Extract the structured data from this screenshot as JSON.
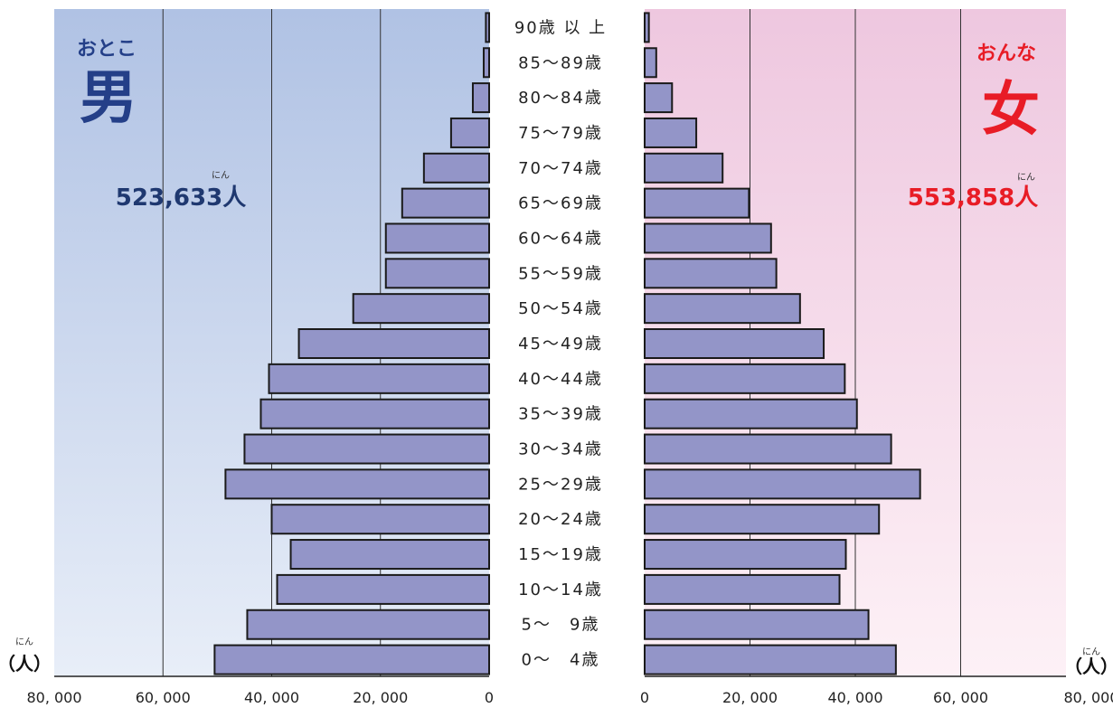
{
  "chart_data": {
    "type": "bar",
    "orientation": "horizontal-butterfly",
    "categories": [
      "90歳 以 上",
      "85～89歳",
      "80～84歳",
      "75～79歳",
      "70～74歳",
      "65～69歳",
      "60～64歳",
      "55～59歳",
      "50～54歳",
      "45～49歳",
      "40～44歳",
      "35～39歳",
      "30～34歳",
      "25～29歳",
      "20～24歳",
      "15～19歳",
      "10～14歳",
      "5～　9歳",
      "0～　4歳"
    ],
    "series": [
      {
        "name": "男",
        "side": "left",
        "reading": "おとこ",
        "total": "523,633人",
        "total_reading": "にん",
        "values": [
          600,
          1000,
          3000,
          7000,
          12000,
          16000,
          19000,
          19000,
          25000,
          35000,
          40500,
          42000,
          45000,
          48500,
          40000,
          36500,
          39000,
          44500,
          50500
        ]
      },
      {
        "name": "女",
        "side": "right",
        "reading": "おんな",
        "total": "553,858人",
        "total_reading": "にん",
        "values": [
          800,
          2200,
          5200,
          9800,
          14800,
          19800,
          24000,
          25000,
          29500,
          34000,
          38000,
          40300,
          46800,
          52300,
          44500,
          38200,
          37000,
          42500,
          47700
        ]
      }
    ],
    "xlim": [
      0,
      80000
    ],
    "x_ticks_left": [
      "80, 000",
      "60, 000",
      "40, 000",
      "20, 000",
      "0"
    ],
    "x_ticks_right": [
      "0",
      "20, 000",
      "40, 000",
      "60, 000",
      "80, 000"
    ],
    "unit_label": "（人）",
    "unit_reading": "にん",
    "grid": true,
    "colors": {
      "bar_fill": "#9395c8",
      "bar_stroke": "#1a1a1a",
      "male_text": "#243f88",
      "male_total": "#1f3870",
      "female_text": "#e81c26",
      "male_bg_top": "#b0c2e4",
      "male_bg_bottom": "#e8eef8",
      "female_bg_top": "#eec7df",
      "female_bg_bottom": "#fdf1f6"
    }
  }
}
